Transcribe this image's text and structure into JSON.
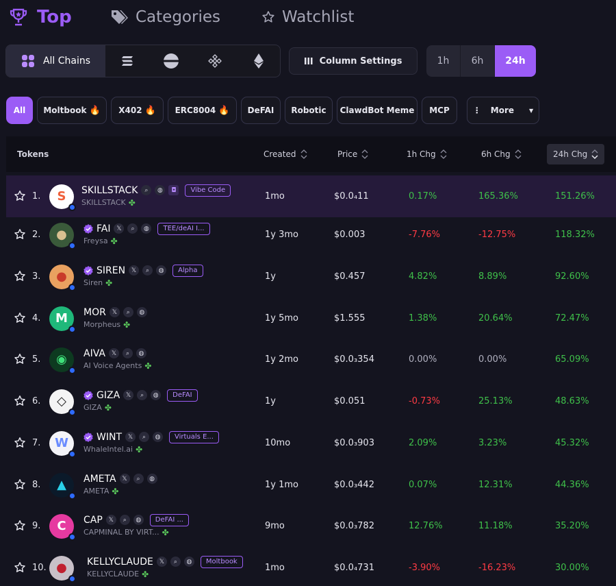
{
  "nav": {
    "top": "Top",
    "categories": "Categories",
    "watchlist": "Watchlist"
  },
  "chains": {
    "all_label": "All Chains"
  },
  "column_settings": "Column Settings",
  "timeframes": [
    "1h",
    "6h",
    "24h"
  ],
  "filters": {
    "all": "All",
    "moltbook": "Moltbook",
    "x402": "X402",
    "erc8004": "ERC8004",
    "defai": "DeFAI",
    "robotic": "Robotic",
    "clawdbot": "ClawdBot Meme",
    "mcp": "MCP",
    "more": "More"
  },
  "columns": {
    "tokens": "Tokens",
    "created": "Created",
    "price": "Price",
    "chg1h": "1h Chg",
    "chg6h": "6h Chg",
    "chg24h": "24h Chg"
  },
  "rows": [
    {
      "rank": "1.",
      "symbol": "SKILLSTACK",
      "name": "SKILLSTACK",
      "tag": "Vibe Code",
      "created": "1mo",
      "price": "$0.0₄11",
      "chg1h": "0.17%",
      "chg6h": "165.36%",
      "chg24h": "151.26%"
    },
    {
      "rank": "2.",
      "symbol": "FAI",
      "name": "Freysa",
      "tag": "TEE/deAI I...",
      "created": "1y 3mo",
      "price": "$0.003",
      "chg1h": "-7.76%",
      "chg6h": "-12.75%",
      "chg24h": "118.32%"
    },
    {
      "rank": "3.",
      "symbol": "SIREN",
      "name": "Siren",
      "tag": "Alpha",
      "created": "1y",
      "price": "$0.457",
      "chg1h": "4.82%",
      "chg6h": "8.89%",
      "chg24h": "92.60%"
    },
    {
      "rank": "4.",
      "symbol": "MOR",
      "name": "Morpheus",
      "tag": "",
      "created": "1y 5mo",
      "price": "$1.555",
      "chg1h": "1.38%",
      "chg6h": "20.64%",
      "chg24h": "72.47%"
    },
    {
      "rank": "5.",
      "symbol": "AIVA",
      "name": "AI Voice Agents",
      "tag": "",
      "created": "1y 2mo",
      "price": "$0.0₃354",
      "chg1h": "0.00%",
      "chg6h": "0.00%",
      "chg24h": "65.09%"
    },
    {
      "rank": "6.",
      "symbol": "GIZA",
      "name": "GIZA",
      "tag": "DeFAI",
      "created": "1y",
      "price": "$0.051",
      "chg1h": "-0.73%",
      "chg6h": "25.13%",
      "chg24h": "48.63%"
    },
    {
      "rank": "7.",
      "symbol": "WINT",
      "name": "WhaleIntel.ai",
      "tag": "Virtuals E...",
      "created": "10mo",
      "price": "$0.0₃903",
      "chg1h": "2.09%",
      "chg6h": "3.23%",
      "chg24h": "45.32%"
    },
    {
      "rank": "8.",
      "symbol": "AMETA",
      "name": "AMETA",
      "tag": "",
      "created": "1y 1mo",
      "price": "$0.0₃442",
      "chg1h": "0.07%",
      "chg6h": "12.31%",
      "chg24h": "44.36%"
    },
    {
      "rank": "9.",
      "symbol": "CAP",
      "name": "CAPMINAL BY VIRT...",
      "tag": "DeFAI ...",
      "created": "9mo",
      "price": "$0.0₃782",
      "chg1h": "12.76%",
      "chg6h": "11.18%",
      "chg24h": "35.20%"
    },
    {
      "rank": "10.",
      "symbol": "KELLYCLAUDE",
      "name": "KELLYCLAUDE",
      "tag": "Moltbook",
      "created": "1mo",
      "price": "$0.0₄731",
      "chg1h": "-3.90%",
      "chg6h": "-16.23%",
      "chg24h": "30.00%"
    }
  ],
  "colors": {
    "accent": "#9b5cf6",
    "positive": "#3fc04a",
    "negative": "#ff3b44",
    "background": "#14141f"
  }
}
